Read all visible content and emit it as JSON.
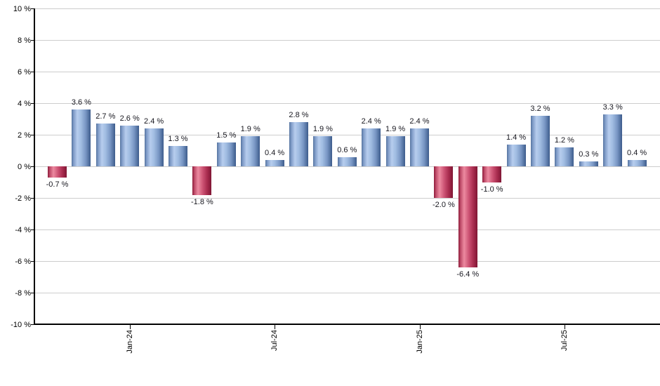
{
  "chart_data": {
    "type": "bar",
    "values": [
      -0.7,
      3.6,
      2.7,
      2.6,
      2.4,
      1.3,
      -1.8,
      1.5,
      1.9,
      0.4,
      2.8,
      1.9,
      0.6,
      2.4,
      1.9,
      2.4,
      -2.0,
      -6.4,
      -1.0,
      1.4,
      3.2,
      1.2,
      0.3,
      3.3,
      0.4
    ],
    "bar_labels": [
      "-0.7 %",
      "3.6 %",
      "2.7 %",
      "2.6 %",
      "2.4 %",
      "1.3 %",
      "-1.8 %",
      "1.5 %",
      "1.9 %",
      "0.4 %",
      "2.8 %",
      "1.9 %",
      "0.6 %",
      "2.4 %",
      "1.9 %",
      "2.4 %",
      "-2.0 %",
      "-6.4 %",
      "-1.0 %",
      "1.4 %",
      "3.2 %",
      "1.2 %",
      "0.3 %",
      "3.3 %",
      "0.4 %"
    ],
    "x_ticks": [
      {
        "label": "Jan-24",
        "bar_index": 3
      },
      {
        "label": "Jul-24",
        "bar_index": 9
      },
      {
        "label": "Jan-25",
        "bar_index": 15
      },
      {
        "label": "Jul-25",
        "bar_index": 21
      }
    ],
    "y_ticks": [
      {
        "label": "10 %",
        "value": 10
      },
      {
        "label": "8 %",
        "value": 8
      },
      {
        "label": "6 %",
        "value": 6
      },
      {
        "label": "4 %",
        "value": 4
      },
      {
        "label": "2 %",
        "value": 2
      },
      {
        "label": "0 %",
        "value": 0
      },
      {
        "label": "-2 %",
        "value": -2
      },
      {
        "label": "-4 %",
        "value": -4
      },
      {
        "label": "-6 %",
        "value": -6
      },
      {
        "label": "-8 %",
        "value": -8
      },
      {
        "label": "-10 %",
        "value": -10
      }
    ],
    "ylim": [
      -10,
      10
    ],
    "grid": true,
    "legend": "none",
    "colors": {
      "positive_base": "#7e9ac6",
      "negative_base": "#c04a67",
      "gridline": "#cdcdcd",
      "axis": "#000000",
      "label_text": "#17171f",
      "positive_gradient_stops": [
        "#54739f 0%",
        "#7e9ac6 10%",
        "#b7cdee 30%",
        "#a0bce1 50%",
        "#7795c3 75%",
        "#3d5c8b 100%"
      ],
      "negative_gradient_stops": [
        "#8e1c3a 0%",
        "#c2506d 12%",
        "#ec8aa0 30%",
        "#cc5273 55%",
        "#a52a4c 80%",
        "#7f1634 100%"
      ]
    }
  }
}
